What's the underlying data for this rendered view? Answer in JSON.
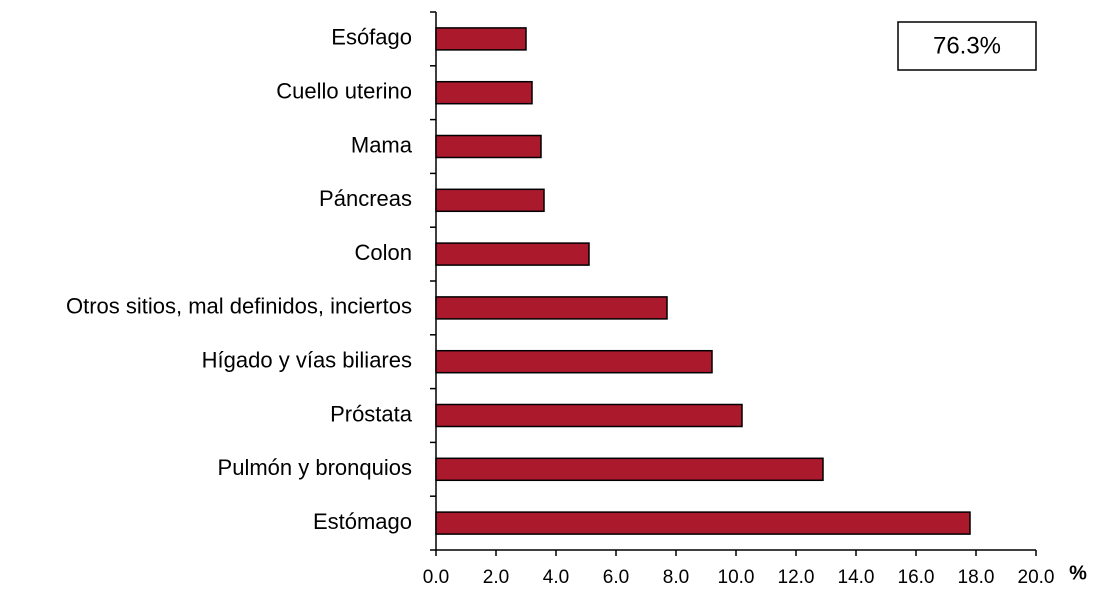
{
  "chart_data": {
    "type": "hbar",
    "categories": [
      "Esófago",
      "Cuello uterino",
      "Mama",
      "Páncreas",
      "Colon",
      "Otros sitios, mal definidos, inciertos",
      "Hígado y vías biliares",
      "Próstata",
      "Pulmón y bronquios",
      "Estómago"
    ],
    "values": [
      3.0,
      3.2,
      3.5,
      3.6,
      5.1,
      7.7,
      9.2,
      10.2,
      12.9,
      17.8
    ],
    "color": "#ab192d",
    "xlim": [
      0,
      20
    ],
    "xticks": [
      {
        "value": 0,
        "label": "0.0"
      },
      {
        "value": 2,
        "label": "2.0"
      },
      {
        "value": 4,
        "label": "4.0"
      },
      {
        "value": 6,
        "label": "6.0"
      },
      {
        "value": 8,
        "label": "8.0"
      },
      {
        "value": 10,
        "label": "10.0"
      },
      {
        "value": 12,
        "label": "12.0"
      },
      {
        "value": 14,
        "label": "14.0"
      },
      {
        "value": 16,
        "label": "16.0"
      },
      {
        "value": 18,
        "label": "18.0"
      },
      {
        "value": 20,
        "label": "20.0"
      }
    ],
    "xlabel": "%",
    "annotation": "76.3%"
  }
}
